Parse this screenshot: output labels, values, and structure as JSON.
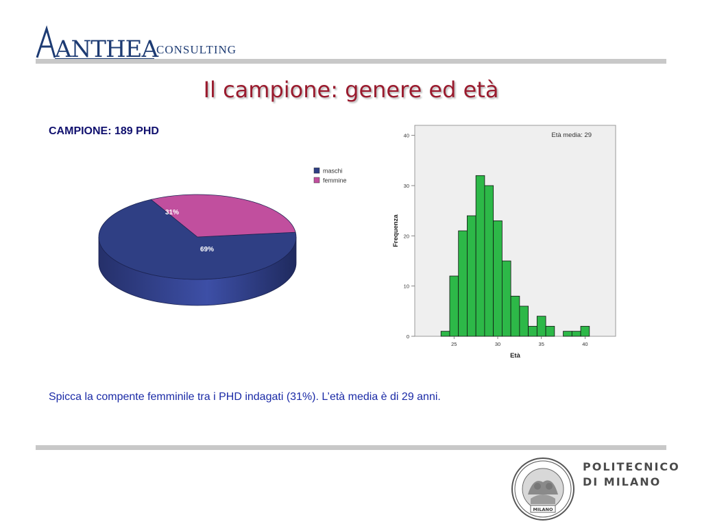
{
  "header": {
    "logo_main": "ANTHEA",
    "logo_sub": "CONSULTING"
  },
  "slide": {
    "title": "Il campione: genere ed età",
    "sample_label": "CAMPIONE: 189 PHD",
    "caption": "Spicca la compente femminile tra i PHD indagati (31%). L’età media è di 29 anni."
  },
  "footer": {
    "university_line1": "POLITECNICO",
    "university_line2": "DI MILANO",
    "seal_text": "MILANO"
  },
  "chart_data": [
    {
      "type": "pie",
      "categories": [
        "maschi",
        "femmine"
      ],
      "values": [
        69,
        31
      ],
      "labels": [
        "69%",
        "31%"
      ],
      "colors": [
        "#2f3f84",
        "#c14f9e"
      ],
      "legend": "top-right",
      "style": "3d"
    },
    {
      "type": "bar",
      "subtype": "histogram",
      "xlabel": "Età",
      "ylabel": "Frequenza",
      "annotation": "Età media: 29",
      "bin_width": 1,
      "bin_start": 23.5,
      "x": [
        24,
        25,
        26,
        27,
        28,
        29,
        30,
        31,
        32,
        33,
        34,
        35,
        36,
        37,
        38,
        39,
        40
      ],
      "values": [
        1,
        12,
        21,
        24,
        32,
        30,
        23,
        15,
        8,
        6,
        2,
        4,
        2,
        0,
        1,
        1,
        2
      ],
      "xlim": [
        20.5,
        43.5
      ],
      "ylim": [
        0,
        42
      ],
      "xticks": [
        25,
        30,
        35,
        40
      ],
      "yticks": [
        0,
        10,
        20,
        30,
        40
      ],
      "bar_color": "#2db848",
      "background": "#efefef",
      "grid": false
    }
  ]
}
